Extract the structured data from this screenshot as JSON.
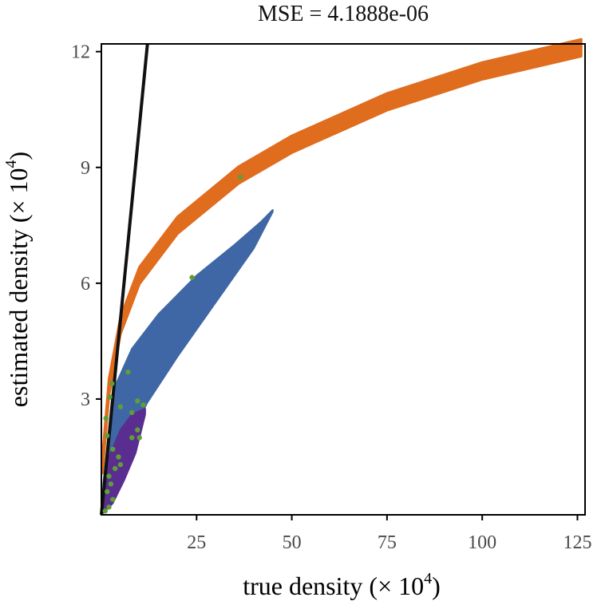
{
  "chart_data": {
    "type": "scatter",
    "title": "MSE = 4.1888e-06",
    "xlabel": {
      "main": "true density (",
      "times": "×",
      "base": "10",
      "exp": "4",
      "close": ")"
    },
    "ylabel": {
      "main": "estimated density (",
      "times": "×",
      "base": "10",
      "exp": "4",
      "close": ")"
    },
    "xlim": [
      0,
      127
    ],
    "ylim": [
      0,
      12.2
    ],
    "x_ticks": [
      25,
      50,
      75,
      100,
      125
    ],
    "y_ticks": [
      3,
      6,
      9,
      12
    ],
    "grid": false,
    "legend": "none",
    "identity_line": {
      "x": [
        0,
        12.1
      ],
      "y": [
        0,
        12.2
      ],
      "color": "#111111"
    },
    "series": [
      {
        "color": "#e06c1e",
        "shape": "narrow band",
        "center": [
          [
            0.3,
            1.3
          ],
          [
            2,
            3.3
          ],
          [
            5,
            4.9
          ],
          [
            10,
            6.2
          ],
          [
            20,
            7.5
          ],
          [
            36,
            8.8
          ],
          [
            50,
            9.6
          ],
          [
            75,
            10.7
          ],
          [
            100,
            11.5
          ],
          [
            126,
            12.1
          ]
        ],
        "half_width": 0.22
      },
      {
        "color": "#3f67a6",
        "shape": "crescent",
        "upper": [
          [
            0.5,
            0.8
          ],
          [
            3,
            3.2
          ],
          [
            8,
            4.3
          ],
          [
            15,
            5.2
          ],
          [
            25,
            6.2
          ],
          [
            35,
            7.0
          ],
          [
            42,
            7.6
          ],
          [
            45,
            7.9
          ]
        ],
        "lower": [
          [
            45,
            7.85
          ],
          [
            40,
            6.9
          ],
          [
            30,
            5.5
          ],
          [
            20,
            4.1
          ],
          [
            12,
            2.9
          ],
          [
            6,
            1.7
          ],
          [
            2,
            0.5
          ],
          [
            0.5,
            0.3
          ]
        ]
      },
      {
        "color": "#5a2d91",
        "shape": "crescent",
        "upper": [
          [
            0.3,
            0.2
          ],
          [
            2,
            1.5
          ],
          [
            5,
            2.2
          ],
          [
            8,
            2.6
          ],
          [
            11.5,
            2.75
          ]
        ],
        "lower": [
          [
            11.5,
            2.6
          ],
          [
            9,
            1.6
          ],
          [
            6,
            0.9
          ],
          [
            3,
            0.3
          ],
          [
            0.5,
            0.05
          ]
        ]
      }
    ],
    "points": {
      "color": "#5f9e36",
      "xy": [
        [
          36.5,
          8.75
        ],
        [
          23.8,
          6.15
        ],
        [
          7,
          3.7
        ],
        [
          2.8,
          3.4
        ],
        [
          2.2,
          3.05
        ],
        [
          9.5,
          2.95
        ],
        [
          5,
          2.8
        ],
        [
          8,
          2.65
        ],
        [
          11,
          2.85
        ],
        [
          1.2,
          2.5
        ],
        [
          1.5,
          2.05
        ],
        [
          9.5,
          2.2
        ],
        [
          8,
          2.0
        ],
        [
          10,
          2.0
        ],
        [
          3,
          1.7
        ],
        [
          4.5,
          1.5
        ],
        [
          5,
          1.3
        ],
        [
          3.6,
          1.2
        ],
        [
          2,
          1.0
        ],
        [
          2.5,
          0.8
        ],
        [
          1.5,
          0.6
        ],
        [
          3,
          0.4
        ],
        [
          2,
          0.2
        ],
        [
          1,
          0.1
        ]
      ]
    }
  }
}
